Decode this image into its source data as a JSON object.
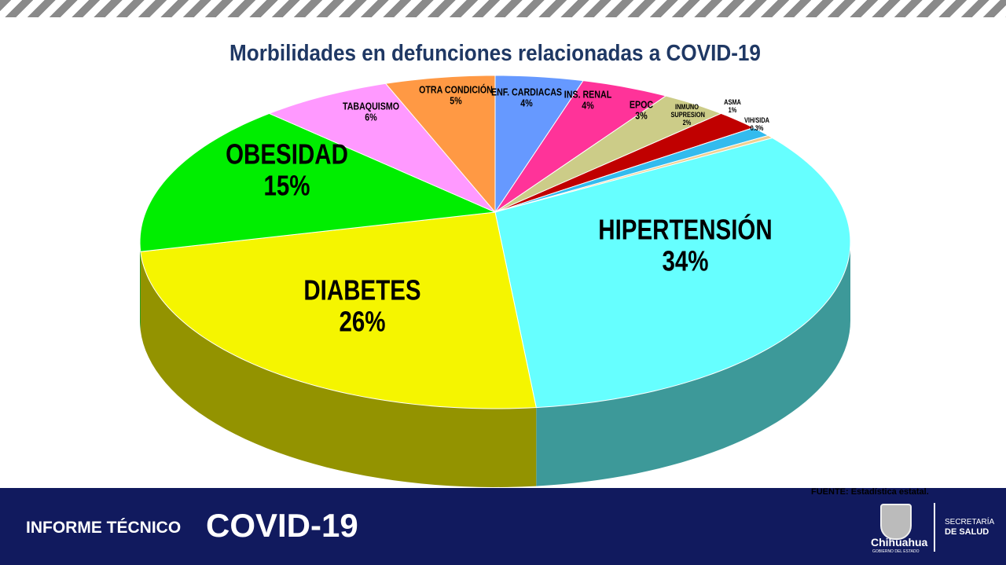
{
  "chart_data": {
    "type": "pie",
    "title": "Morbilidades en defunciones relacionadas a COVID-19",
    "slices": [
      {
        "label": "ENF. CARDIACAS",
        "value": 4,
        "text": "4%",
        "color": "#6699ff"
      },
      {
        "label": "INS. RENAL",
        "value": 4,
        "text": "4%",
        "color": "#ff3399"
      },
      {
        "label": "EPOC",
        "value": 3,
        "text": "3%",
        "color": "#cccc88"
      },
      {
        "label": "INMUNO SUPRESION",
        "value": 2,
        "text": "2%",
        "color": "#c00000"
      },
      {
        "label": "ASMA",
        "value": 1,
        "text": "1%",
        "color": "#33bbee"
      },
      {
        "label": "VIH/SIDA",
        "value": 0.3,
        "text": "0.3%",
        "color": "#f0d090"
      },
      {
        "label": "HIPERTENSIÓN",
        "value": 34,
        "text": "34%",
        "color": "#66ffff"
      },
      {
        "label": "DIABETES",
        "value": 26,
        "text": "26%",
        "color": "#f5f500"
      },
      {
        "label": "OBESIDAD",
        "value": 15,
        "text": "15%",
        "color": "#00ee00"
      },
      {
        "label": "TABAQUISMO",
        "value": 6,
        "text": "6%",
        "color": "#ff99ff"
      },
      {
        "label": "OTRA CONDICIÓN",
        "value": 5,
        "text": "5%",
        "color": "#ff9944"
      }
    ]
  },
  "source": "FUENTE: Estadística estatal.",
  "footer": {
    "report": "INFORME TÉCNICO",
    "topic": "COVID-19",
    "state": "Chihuahua",
    "gov": "GOBIERNO DEL ESTADO",
    "sec1": "SECRETARÍA",
    "sec2": "DE SALUD"
  }
}
